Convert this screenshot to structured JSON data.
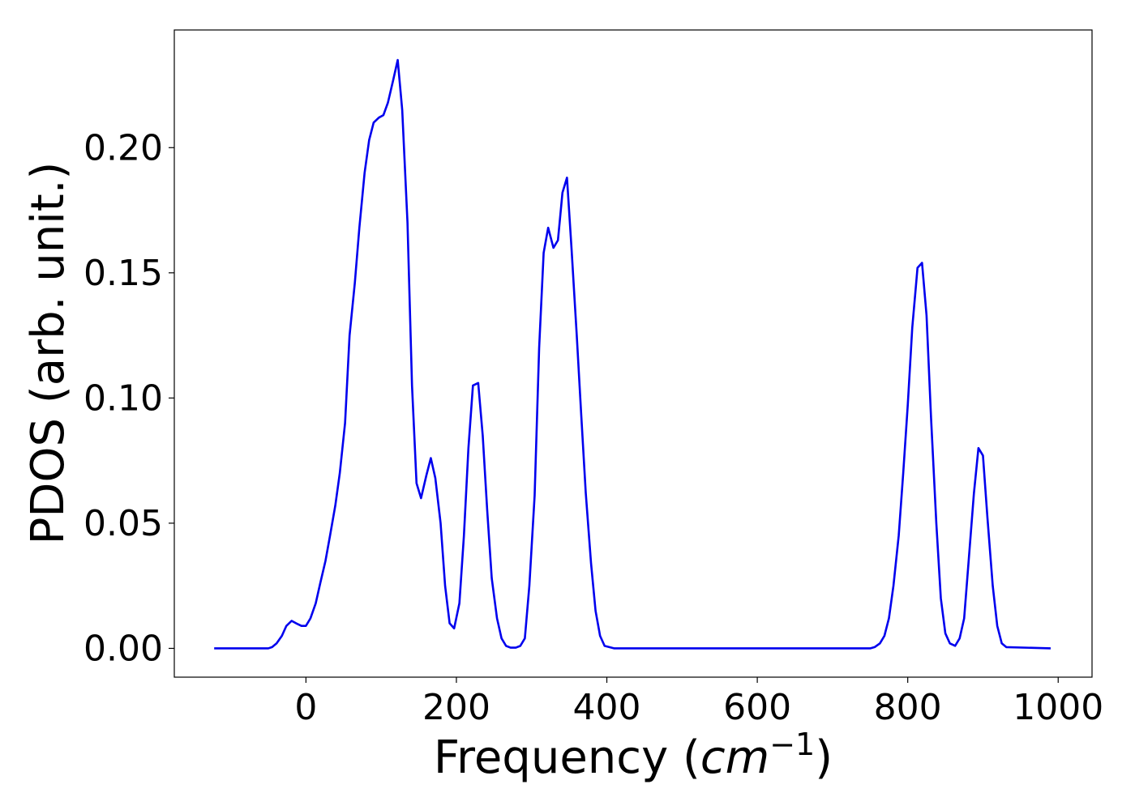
{
  "chart_data": {
    "type": "line",
    "title": "",
    "xlabel": {
      "prefix": "Frequency (",
      "unit_base": "cm",
      "unit_exp": "−1",
      "suffix": ")"
    },
    "ylabel": "PDOS (arb. unit.)",
    "xlim": [
      -175,
      1045
    ],
    "ylim": [
      -0.0115,
      0.247
    ],
    "xticks": [
      0,
      200,
      400,
      600,
      800,
      1000
    ],
    "xtick_labels": [
      "0",
      "200",
      "400",
      "600",
      "800",
      "1000"
    ],
    "yticks": [
      0.0,
      0.05,
      0.1,
      0.15,
      0.2
    ],
    "ytick_labels": [
      "0.00",
      "0.05",
      "0.10",
      "0.15",
      "0.20"
    ],
    "grid": false,
    "legend": "none",
    "series": [
      {
        "color": "#0000ee",
        "x": [
          -122,
          -50,
          -45,
          -39,
          -32,
          -26,
          -19,
          -13,
          -6,
          0,
          6,
          13,
          19,
          26,
          32,
          39,
          45,
          52,
          58,
          65,
          71,
          78,
          84,
          90,
          97,
          103,
          109,
          116,
          122,
          128,
          135,
          141,
          147,
          153,
          160,
          166,
          172,
          179,
          185,
          191,
          197,
          204,
          210,
          216,
          222,
          229,
          235,
          241,
          247,
          254,
          260,
          266,
          272,
          279,
          285,
          291,
          297,
          304,
          310,
          316,
          322,
          329,
          335,
          341,
          347,
          353,
          360,
          366,
          372,
          379,
          385,
          391,
          397,
          410,
          500,
          600,
          700,
          750,
          756,
          763,
          769,
          775,
          781,
          788,
          794,
          800,
          806,
          813,
          819,
          825,
          831,
          838,
          844,
          850,
          856,
          863,
          869,
          875,
          881,
          888,
          894,
          900,
          906,
          913,
          919,
          925,
          931,
          990
        ],
        "y": [
          0.0,
          0.0,
          0.0005,
          0.002,
          0.005,
          0.009,
          0.011,
          0.01,
          0.009,
          0.009,
          0.012,
          0.018,
          0.026,
          0.035,
          0.045,
          0.057,
          0.07,
          0.09,
          0.125,
          0.146,
          0.168,
          0.19,
          0.203,
          0.21,
          0.212,
          0.213,
          0.218,
          0.227,
          0.235,
          0.215,
          0.17,
          0.105,
          0.066,
          0.06,
          0.069,
          0.076,
          0.068,
          0.05,
          0.025,
          0.01,
          0.008,
          0.018,
          0.045,
          0.08,
          0.105,
          0.106,
          0.085,
          0.055,
          0.028,
          0.012,
          0.004,
          0.001,
          0.0003,
          0.0003,
          0.001,
          0.004,
          0.025,
          0.061,
          0.12,
          0.158,
          0.168,
          0.16,
          0.163,
          0.182,
          0.188,
          0.16,
          0.125,
          0.093,
          0.062,
          0.034,
          0.015,
          0.005,
          0.001,
          0.0,
          0.0,
          0.0,
          0.0,
          0.0,
          0.0005,
          0.002,
          0.005,
          0.012,
          0.025,
          0.045,
          0.07,
          0.097,
          0.128,
          0.152,
          0.154,
          0.133,
          0.092,
          0.05,
          0.02,
          0.006,
          0.002,
          0.001,
          0.004,
          0.012,
          0.035,
          0.062,
          0.08,
          0.077,
          0.052,
          0.025,
          0.009,
          0.002,
          0.0005,
          0.0
        ]
      }
    ]
  }
}
